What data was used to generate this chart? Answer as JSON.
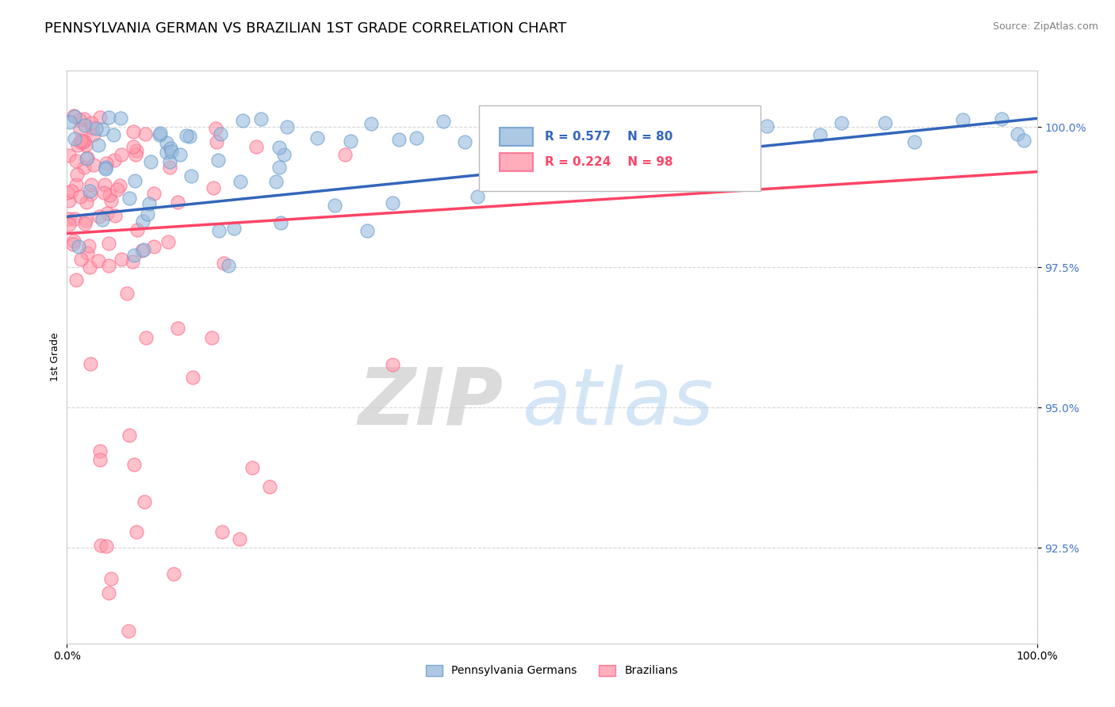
{
  "title": "PENNSYLVANIA GERMAN VS BRAZILIAN 1ST GRADE CORRELATION CHART",
  "source": "Source: ZipAtlas.com",
  "ylabel": "1st Grade",
  "yticks": [
    92.5,
    95.0,
    97.5,
    100.0
  ],
  "ytick_labels": [
    "92.5%",
    "95.0%",
    "97.5%",
    "100.0%"
  ],
  "xlim": [
    0,
    100
  ],
  "ylim": [
    90.8,
    101.0
  ],
  "R_blue": 0.577,
  "N_blue": 80,
  "R_pink": 0.224,
  "N_pink": 98,
  "blue_color": "#99BBDD",
  "pink_color": "#FF99AA",
  "blue_edge_color": "#6699CC",
  "pink_edge_color": "#FF6688",
  "blue_line_color": "#3366BB",
  "pink_line_color": "#FF4466",
  "ytick_color": "#4477CC",
  "watermark_zip": "ZIP",
  "watermark_atlas": "atlas",
  "legend_label_blue": "Pennsylvania Germans",
  "legend_label_pink": "Brazilians",
  "title_fontsize": 13,
  "axis_label_fontsize": 9,
  "tick_label_fontsize": 10,
  "legend_fontsize": 11,
  "blue_seed": 42,
  "pink_seed": 7,
  "blue_line_start_y": 98.4,
  "blue_line_end_y": 100.15,
  "pink_line_start_y": 98.1,
  "pink_line_end_y": 99.2
}
